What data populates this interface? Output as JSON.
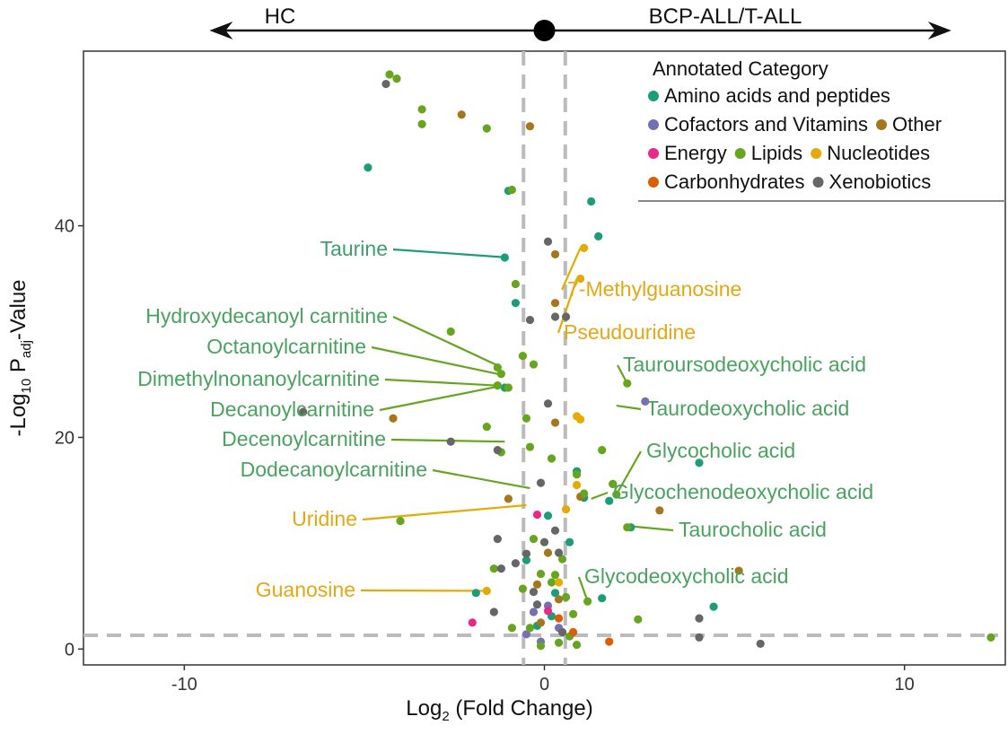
{
  "chart_data": {
    "type": "scatter",
    "title": "",
    "xlabel": "Log2 (Fold Change)",
    "xlabel_parts": {
      "pre": "Log",
      "sub": "2",
      "post": " (Fold Change)"
    },
    "ylabel": "-Log10 Padj-Value",
    "ylabel_parts": {
      "pre": "-Log",
      "sub1": "10",
      "mid": " P",
      "sub2": "adj",
      "post": "-Value"
    },
    "xlim": [
      -12.8,
      12.8
    ],
    "ylim": [
      -1.5,
      56.5
    ],
    "x_ticks": [
      -10,
      0,
      10
    ],
    "x_tick_labels": [
      "-10",
      "0",
      "10"
    ],
    "y_ticks": [
      0,
      20,
      40
    ],
    "y_tick_labels": [
      "0",
      "20",
      "40"
    ],
    "grid": false,
    "thresholds": {
      "x": [
        -0.58,
        0.58
      ],
      "y": 1.3
    },
    "direction_arrow": {
      "left_label": "HC",
      "right_label": "BCP-ALL/T-ALL",
      "x_min": -9.3,
      "x_max": 11.3,
      "center": 0
    },
    "legend": {
      "title": "Annotated Category",
      "position": "top-right",
      "rows": [
        [
          {
            "name": "Amino acids and peptides",
            "color": "#1b9e77"
          }
        ],
        [
          {
            "name": "Cofactors and Vitamins",
            "color": "#7570b3"
          },
          {
            "name": "Other",
            "color": "#a6761d"
          }
        ],
        [
          {
            "name": "Energy",
            "color": "#e7298a"
          },
          {
            "name": "Lipids",
            "color": "#66a61e"
          },
          {
            "name": "Nucleotides",
            "color": "#e6ab02"
          }
        ],
        [
          {
            "name": "Carbonhydrates",
            "color": "#d95f02"
          },
          {
            "name": "Xenobiotics",
            "color": "#666666"
          }
        ]
      ]
    },
    "series": [
      {
        "name": "Amino acids and peptides",
        "color": "#1b9e77",
        "x": [
          -4.9,
          -1.0,
          -1.1,
          1.5,
          1.3,
          -0.8,
          -1.1,
          1.8,
          4.3,
          2.4,
          0.9,
          0.7,
          1.9,
          0.1,
          -0.5,
          0.3,
          4.7,
          1.1,
          0.2,
          -0.2,
          -1.9,
          1.6
        ],
        "y": [
          45.5,
          43.3,
          37.0,
          39.0,
          42.3,
          32.7,
          24.7,
          14.0,
          17.6,
          11.5,
          16.8,
          10.1,
          15.6,
          12.6,
          8.4,
          5.3,
          4.0,
          14.3,
          3.1,
          2.2,
          5.3,
          4.8
        ]
      },
      {
        "name": "Cofactors and Vitamins",
        "color": "#7570b3",
        "x": [
          2.8,
          -0.1,
          0.4,
          -0.3,
          -0.5,
          0.1
        ],
        "y": [
          23.4,
          0.7,
          2.0,
          3.5,
          1.4,
          4.1
        ]
      },
      {
        "name": "Other",
        "color": "#a6761d",
        "x": [
          -2.3,
          -0.4,
          -4.2,
          0.3,
          0.3,
          0.3,
          3.2,
          5.4,
          -1.0,
          1.0,
          0.1,
          -0.2,
          0.4,
          -0.1
        ],
        "y": [
          50.5,
          49.4,
          21.8,
          37.3,
          32.7,
          21.4,
          13.1,
          7.4,
          14.2,
          14.4,
          9.1,
          6.1,
          4.7,
          2.5
        ]
      },
      {
        "name": "Energy",
        "color": "#e7298a",
        "x": [
          -2.0,
          0.1,
          -0.2
        ],
        "y": [
          2.5,
          3.6,
          12.7
        ]
      },
      {
        "name": "Lipids",
        "color": "#66a61e",
        "x": [
          -4.3,
          -4.1,
          -3.4,
          -3.4,
          -1.6,
          -0.9,
          -2.6,
          -1.3,
          -1.2,
          -1.3,
          -1.0,
          -0.3,
          -0.6,
          -1.6,
          -0.5,
          2.3,
          2.0,
          2.3,
          1.6,
          12.4,
          1.9,
          -0.8,
          -4.0,
          -1.2,
          0.2,
          -0.4,
          0.9,
          1.1,
          0.5,
          -0.3,
          -0.1,
          0.2,
          -1.4,
          1.2,
          0.8,
          2.6,
          -0.4,
          0.7,
          0.9,
          -0.1,
          0.4,
          -0.9,
          -0.6,
          0.6,
          0.3
        ],
        "y": [
          54.3,
          53.9,
          51.0,
          49.6,
          49.2,
          43.4,
          30.0,
          26.6,
          26.0,
          24.9,
          24.7,
          26.9,
          27.7,
          21.0,
          21.8,
          25.1,
          14.6,
          11.5,
          18.8,
          1.1,
          15.6,
          34.5,
          12.1,
          18.6,
          18.0,
          19.1,
          16.5,
          14.7,
          8.5,
          10.4,
          7.1,
          6.3,
          7.6,
          4.5,
          3.3,
          2.8,
          2.0,
          1.2,
          0.4,
          0.3,
          0.6,
          2.0,
          5.7,
          4.9,
          7.0
        ]
      },
      {
        "name": "Nucleotides",
        "color": "#e6ab02",
        "x": [
          1.1,
          1.0,
          -1.6,
          0.9,
          1.0,
          0.9,
          0.6,
          0.4
        ],
        "y": [
          37.9,
          35.0,
          5.5,
          22.0,
          21.7,
          15.5,
          13.2,
          6.3
        ]
      },
      {
        "name": "Carbonhydrates",
        "color": "#d95f02",
        "x": [
          1.8,
          0.8,
          0.4
        ],
        "y": [
          0.7,
          1.6,
          2.9
        ]
      },
      {
        "name": "Xenobiotics",
        "color": "#666666",
        "x": [
          -4.4,
          0.1,
          -0.4,
          0.3,
          0.6,
          -6.7,
          -2.6,
          -1.3,
          0.1,
          -0.1,
          -1.3,
          -0.5,
          4.3,
          4.3,
          6.0,
          -1.4,
          -1.2,
          -0.8,
          0.4,
          -0.2,
          0.5,
          0.0,
          0.3,
          -0.3
        ],
        "y": [
          53.4,
          38.5,
          31.1,
          31.4,
          31.4,
          22.4,
          19.6,
          18.8,
          23.2,
          15.7,
          10.4,
          9.0,
          2.9,
          1.1,
          0.5,
          3.5,
          7.6,
          8.1,
          9.1,
          4.2,
          1.6,
          10.1,
          11.2,
          5.4
        ]
      }
    ],
    "annotations": [
      {
        "label": "Taurine",
        "x": -1.0,
        "y": 37.0,
        "color": "#3e9f6e",
        "line_color": "#1b9e77"
      },
      {
        "label": "7-Methylguanosine",
        "x": 1.0,
        "y": 37.9,
        "color": "#e6a714",
        "line_color": "#e6ab02"
      },
      {
        "label": "Pseudouridine",
        "x": 0.9,
        "y": 35.0,
        "color": "#e6a714",
        "line_color": "#e6ab02"
      },
      {
        "label": "Hydroxydecanoyl carnitine",
        "x": -1.3,
        "y": 26.8,
        "color": "#49a35f",
        "line_color": "#66a61e"
      },
      {
        "label": "Octanoylcarnitine",
        "x": -1.3,
        "y": 26.0,
        "color": "#49a35f",
        "line_color": "#66a61e"
      },
      {
        "label": "Dimethylnonanoylcarnitine",
        "x": -1.3,
        "y": 24.9,
        "color": "#49a35f",
        "line_color": "#66a61e"
      },
      {
        "label": "Decanoylcarnitine",
        "x": -1.3,
        "y": 24.8,
        "color": "#49a35f",
        "line_color": "#66a61e"
      },
      {
        "label": "Tauroursodeoxycholic acid",
        "x": 2.3,
        "y": 25.1,
        "color": "#49a35f",
        "line_color": "#66a61e"
      },
      {
        "label": "Taurodeoxycholic acid",
        "x": 2.0,
        "y": 23.0,
        "color": "#49a35f",
        "line_color": "#66a61e"
      },
      {
        "label": "Decenoylcarnitine",
        "x": -1.1,
        "y": 19.6,
        "color": "#49a35f",
        "line_color": "#66a61e"
      },
      {
        "label": "Glycocholic acid",
        "x": 2.0,
        "y": 14.6,
        "color": "#49a35f",
        "line_color": "#66a61e"
      },
      {
        "label": "Dodecanoylcarnitine",
        "x": -0.4,
        "y": 15.2,
        "color": "#49a35f",
        "line_color": "#66a61e"
      },
      {
        "label": "Glycochenodeoxycholic acid",
        "x": 1.3,
        "y": 14.2,
        "color": "#49a35f",
        "line_color": "#66a61e"
      },
      {
        "label": "Uridine",
        "x": -0.5,
        "y": 13.6,
        "color": "#e6a714",
        "line_color": "#e6ab02"
      },
      {
        "label": "Taurocholic acid",
        "x": 2.4,
        "y": 11.6,
        "color": "#49a35f",
        "line_color": "#66a61e"
      },
      {
        "label": "Glycodeoxycholic acid",
        "x": 1.2,
        "y": 4.5,
        "color": "#49a35f",
        "line_color": "#66a61e"
      },
      {
        "label": "Guanosine",
        "x": -1.6,
        "y": 5.5,
        "color": "#e6a714",
        "line_color": "#e6ab02"
      }
    ]
  }
}
